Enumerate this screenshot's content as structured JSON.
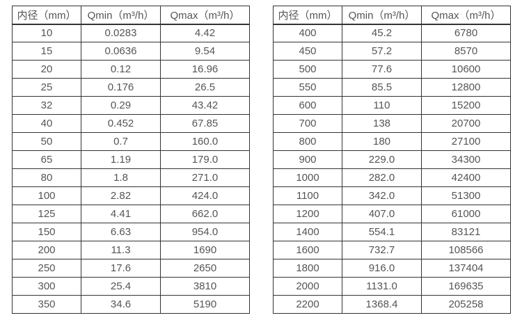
{
  "page": {
    "background": "#ffffff",
    "border_color": "#333333",
    "text_color": "#555555"
  },
  "tables": [
    {
      "name": "diameter-flow-table-small",
      "headers": [
        "内径（mm）",
        "Qmin（m³/h）",
        "Qmax（m³/h）"
      ],
      "rows": [
        [
          "10",
          "0.0283",
          "4.42"
        ],
        [
          "15",
          "0.0636",
          "9.54"
        ],
        [
          "20",
          "0.12",
          "16.96"
        ],
        [
          "25",
          "0.176",
          "26.5"
        ],
        [
          "32",
          "0.29",
          "43.42"
        ],
        [
          "40",
          "0.452",
          "67.85"
        ],
        [
          "50",
          "0.7",
          "160.0"
        ],
        [
          "65",
          "1.19",
          "179.0"
        ],
        [
          "80",
          "1.8",
          "271.0"
        ],
        [
          "100",
          "2.82",
          "424.0"
        ],
        [
          "125",
          "4.41",
          "662.0"
        ],
        [
          "150",
          "6.63",
          "954.0"
        ],
        [
          "200",
          "11.3",
          "1690"
        ],
        [
          "250",
          "17.6",
          "2650"
        ],
        [
          "300",
          "25.4",
          "3810"
        ],
        [
          "350",
          "34.6",
          "5190"
        ]
      ]
    },
    {
      "name": "diameter-flow-table-large",
      "headers": [
        "内径（mm）",
        "Qmin（m³/h）",
        "Qmax（m³/h）"
      ],
      "rows": [
        [
          "400",
          "45.2",
          "6780"
        ],
        [
          "450",
          "57.2",
          "8570"
        ],
        [
          "500",
          "77.6",
          "10600"
        ],
        [
          "550",
          "85.5",
          "12800"
        ],
        [
          "600",
          "110",
          "15200"
        ],
        [
          "700",
          "138",
          "20700"
        ],
        [
          "800",
          "180",
          "27100"
        ],
        [
          "900",
          "229.0",
          "34300"
        ],
        [
          "1000",
          "282.0",
          "42400"
        ],
        [
          "1100",
          "342.0",
          "51300"
        ],
        [
          "1200",
          "407.0",
          "61000"
        ],
        [
          "1400",
          "554.1",
          "83121"
        ],
        [
          "1600",
          "732.7",
          "108566"
        ],
        [
          "1800",
          "916.0",
          "137404"
        ],
        [
          "2000",
          "1131.0",
          "169635"
        ],
        [
          "2200",
          "1368.4",
          "205258"
        ]
      ]
    }
  ]
}
